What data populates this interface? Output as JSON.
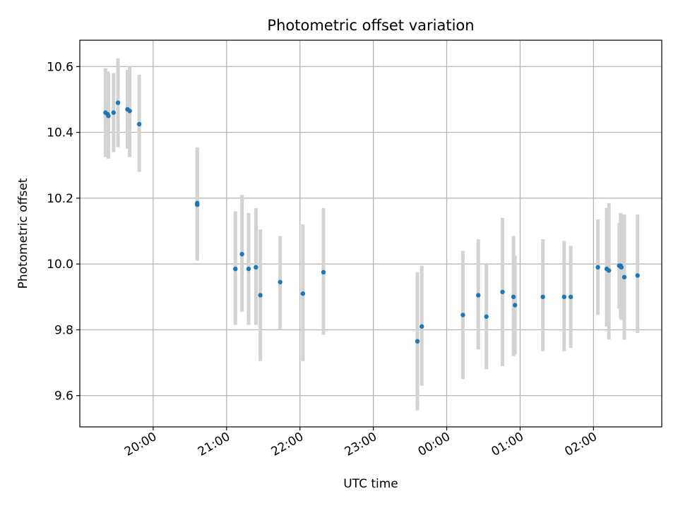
{
  "chart_data": {
    "type": "scatter",
    "title": "Photometric offset variation",
    "xlabel": "UTC time",
    "ylabel": "Photometric offset",
    "x_unit": "hours since 19:00 UTC",
    "xlim": [
      0.0,
      7.93
    ],
    "ylim": [
      9.505,
      10.68
    ],
    "grid": true,
    "x_ticks": [
      {
        "value": 1.0,
        "label": "20:00"
      },
      {
        "value": 2.0,
        "label": "21:00"
      },
      {
        "value": 3.0,
        "label": "22:00"
      },
      {
        "value": 4.0,
        "label": "23:00"
      },
      {
        "value": 5.0,
        "label": "00:00"
      },
      {
        "value": 6.0,
        "label": "01:00"
      },
      {
        "value": 7.0,
        "label": "02:00"
      }
    ],
    "y_ticks": [
      {
        "value": 9.6,
        "label": "9.6"
      },
      {
        "value": 9.8,
        "label": "9.8"
      },
      {
        "value": 10.0,
        "label": "10.0"
      },
      {
        "value": 10.2,
        "label": "10.2"
      },
      {
        "value": 10.4,
        "label": "10.4"
      },
      {
        "value": 10.6,
        "label": "10.6"
      }
    ],
    "marker_color": "#1f77b4",
    "errorbar_color": "#d3d3d3",
    "points": [
      {
        "x": 0.35,
        "y": 10.46,
        "lo": 10.325,
        "hi": 10.595
      },
      {
        "x": 0.38,
        "y": 10.455,
        "lo": 10.325,
        "hi": 10.585
      },
      {
        "x": 0.39,
        "y": 10.45,
        "lo": 10.32,
        "hi": 10.58
      },
      {
        "x": 0.46,
        "y": 10.46,
        "lo": 10.34,
        "hi": 10.58
      },
      {
        "x": 0.52,
        "y": 10.49,
        "lo": 10.355,
        "hi": 10.625
      },
      {
        "x": 0.65,
        "y": 10.47,
        "lo": 10.35,
        "hi": 10.59
      },
      {
        "x": 0.68,
        "y": 10.465,
        "lo": 10.325,
        "hi": 10.6
      },
      {
        "x": 0.81,
        "y": 10.425,
        "lo": 10.28,
        "hi": 10.575
      },
      {
        "x": 1.6,
        "y": 10.18,
        "lo": 10.015,
        "hi": 10.355
      },
      {
        "x": 1.6,
        "y": 10.185,
        "lo": 10.01,
        "hi": 10.35
      },
      {
        "x": 2.12,
        "y": 9.985,
        "lo": 9.815,
        "hi": 10.16
      },
      {
        "x": 2.21,
        "y": 10.03,
        "lo": 9.855,
        "hi": 10.21
      },
      {
        "x": 2.3,
        "y": 9.985,
        "lo": 9.815,
        "hi": 10.155
      },
      {
        "x": 2.4,
        "y": 9.99,
        "lo": 9.815,
        "hi": 10.17
      },
      {
        "x": 2.46,
        "y": 9.905,
        "lo": 9.705,
        "hi": 10.105
      },
      {
        "x": 2.73,
        "y": 9.945,
        "lo": 9.8,
        "hi": 10.085
      },
      {
        "x": 3.04,
        "y": 9.91,
        "lo": 9.705,
        "hi": 10.12
      },
      {
        "x": 3.32,
        "y": 9.975,
        "lo": 9.785,
        "hi": 10.17
      },
      {
        "x": 4.6,
        "y": 9.765,
        "lo": 9.555,
        "hi": 9.975
      },
      {
        "x": 4.66,
        "y": 9.81,
        "lo": 9.63,
        "hi": 9.995
      },
      {
        "x": 5.22,
        "y": 9.845,
        "lo": 9.65,
        "hi": 10.04
      },
      {
        "x": 5.43,
        "y": 9.905,
        "lo": 9.74,
        "hi": 10.075
      },
      {
        "x": 5.54,
        "y": 9.84,
        "lo": 9.68,
        "hi": 10.0
      },
      {
        "x": 5.76,
        "y": 9.915,
        "lo": 9.69,
        "hi": 10.14
      },
      {
        "x": 5.91,
        "y": 9.9,
        "lo": 9.72,
        "hi": 10.085
      },
      {
        "x": 5.93,
        "y": 9.875,
        "lo": 9.725,
        "hi": 10.025
      },
      {
        "x": 6.31,
        "y": 9.9,
        "lo": 9.735,
        "hi": 10.075
      },
      {
        "x": 6.6,
        "y": 9.9,
        "lo": 9.735,
        "hi": 10.07
      },
      {
        "x": 6.69,
        "y": 9.9,
        "lo": 9.745,
        "hi": 10.055
      },
      {
        "x": 7.06,
        "y": 9.99,
        "lo": 9.845,
        "hi": 10.135
      },
      {
        "x": 7.18,
        "y": 9.985,
        "lo": 9.81,
        "hi": 10.17
      },
      {
        "x": 7.21,
        "y": 9.98,
        "lo": 9.77,
        "hi": 10.185
      },
      {
        "x": 7.35,
        "y": 9.995,
        "lo": 9.865,
        "hi": 10.125
      },
      {
        "x": 7.37,
        "y": 9.995,
        "lo": 9.835,
        "hi": 10.155
      },
      {
        "x": 7.38,
        "y": 9.99,
        "lo": 9.83,
        "hi": 10.15
      },
      {
        "x": 7.42,
        "y": 9.96,
        "lo": 9.77,
        "hi": 10.15
      },
      {
        "x": 7.6,
        "y": 9.965,
        "lo": 9.79,
        "hi": 10.15
      }
    ]
  }
}
